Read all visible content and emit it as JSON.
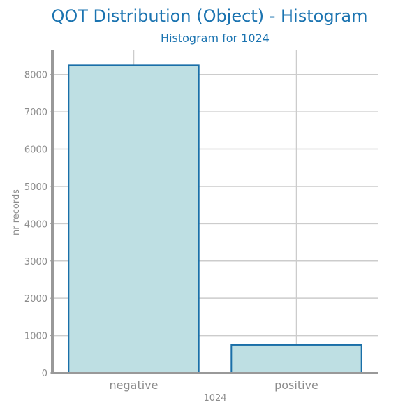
{
  "chart_data": {
    "type": "bar",
    "title": "QOT Distribution (Object) - Histogram",
    "subtitle": "Histogram for 1024",
    "xlabel": "1024",
    "ylabel": "nr records",
    "categories": [
      "negative",
      "positive"
    ],
    "values": [
      8250,
      750
    ],
    "yticks": [
      0,
      1000,
      2000,
      3000,
      4000,
      5000,
      6000,
      7000,
      8000
    ],
    "ylim": [
      0,
      8650
    ],
    "grid": true,
    "bar_fill": "#bedfe3",
    "bar_stroke": "#1a6fa8",
    "grid_color": "#cccccc",
    "axis_color": "#999999",
    "title_color": "#1a73b0",
    "tick_color": "#8c8c8c"
  }
}
